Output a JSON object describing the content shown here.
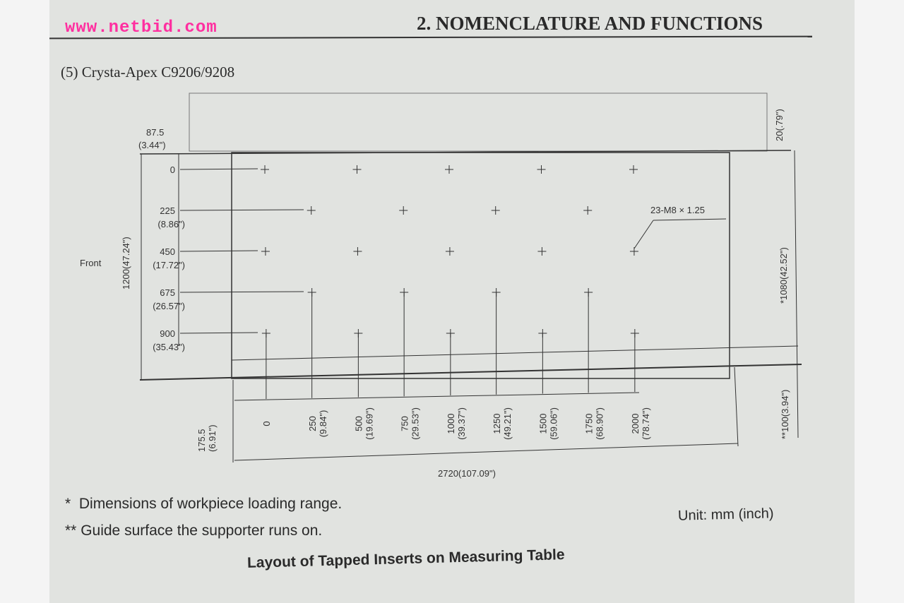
{
  "header": {
    "watermark": "www.netbid.com",
    "section_title": "2. NOMENCLATURE AND FUNCTIONS"
  },
  "subtitle": "(5)  Crysta-Apex C9206/9208",
  "diagram": {
    "front_label": "Front",
    "left_total": "1200(47.24\")",
    "left_offset": [
      "87.5",
      "(3.44\")"
    ],
    "row_labels": [
      {
        "mm": "0",
        "in": ""
      },
      {
        "mm": "225",
        "in": "(8.86\")"
      },
      {
        "mm": "450",
        "in": "(17.72\")"
      },
      {
        "mm": "675",
        "in": "(26.57\")"
      },
      {
        "mm": "900",
        "in": "(35.43\")"
      }
    ],
    "col_labels": [
      {
        "mm": "0",
        "in": ""
      },
      {
        "mm": "250",
        "in": "(9.84\")"
      },
      {
        "mm": "500",
        "in": "(19.69\")"
      },
      {
        "mm": "750",
        "in": "(29.53\")"
      },
      {
        "mm": "1000",
        "in": "(39.37\")"
      },
      {
        "mm": "1250",
        "in": "(49.21\")"
      },
      {
        "mm": "1500",
        "in": "(59.06\")"
      },
      {
        "mm": "1750",
        "in": "(68.90\")"
      },
      {
        "mm": "2000",
        "in": "(78.74\")"
      }
    ],
    "bottom_offset": [
      "175.5",
      "(6.91\")"
    ],
    "total_width": "2720(107.09\")",
    "right_top": "20(.79\")",
    "right_mid": "*1080(42.52\")",
    "right_bottom": "**100(3.94\")",
    "callout": "23-M8 × 1.25",
    "inserts": [
      {
        "row": 0,
        "cols": [
          0,
          500,
          1000,
          1500,
          2000
        ]
      },
      {
        "row": 225,
        "cols": [
          250,
          750,
          1250,
          1750
        ]
      },
      {
        "row": 450,
        "cols": [
          0,
          500,
          1000,
          1500,
          2000
        ]
      },
      {
        "row": 675,
        "cols": [
          250,
          750,
          1250,
          1750
        ]
      },
      {
        "row": 900,
        "cols": [
          0,
          500,
          1000,
          1500,
          2000
        ]
      }
    ]
  },
  "notes": [
    "Dimensions of workpiece loading range.",
    "Guide surface the supporter runs on."
  ],
  "note_marks": [
    "*",
    "**"
  ],
  "unit": "Unit: mm (inch)",
  "caption": "Layout of Tapped Inserts on Measuring Table",
  "colors": {
    "watermark": "#ff2fa0",
    "ink": "#2a2a2a",
    "paper": "#e1e3e0"
  }
}
